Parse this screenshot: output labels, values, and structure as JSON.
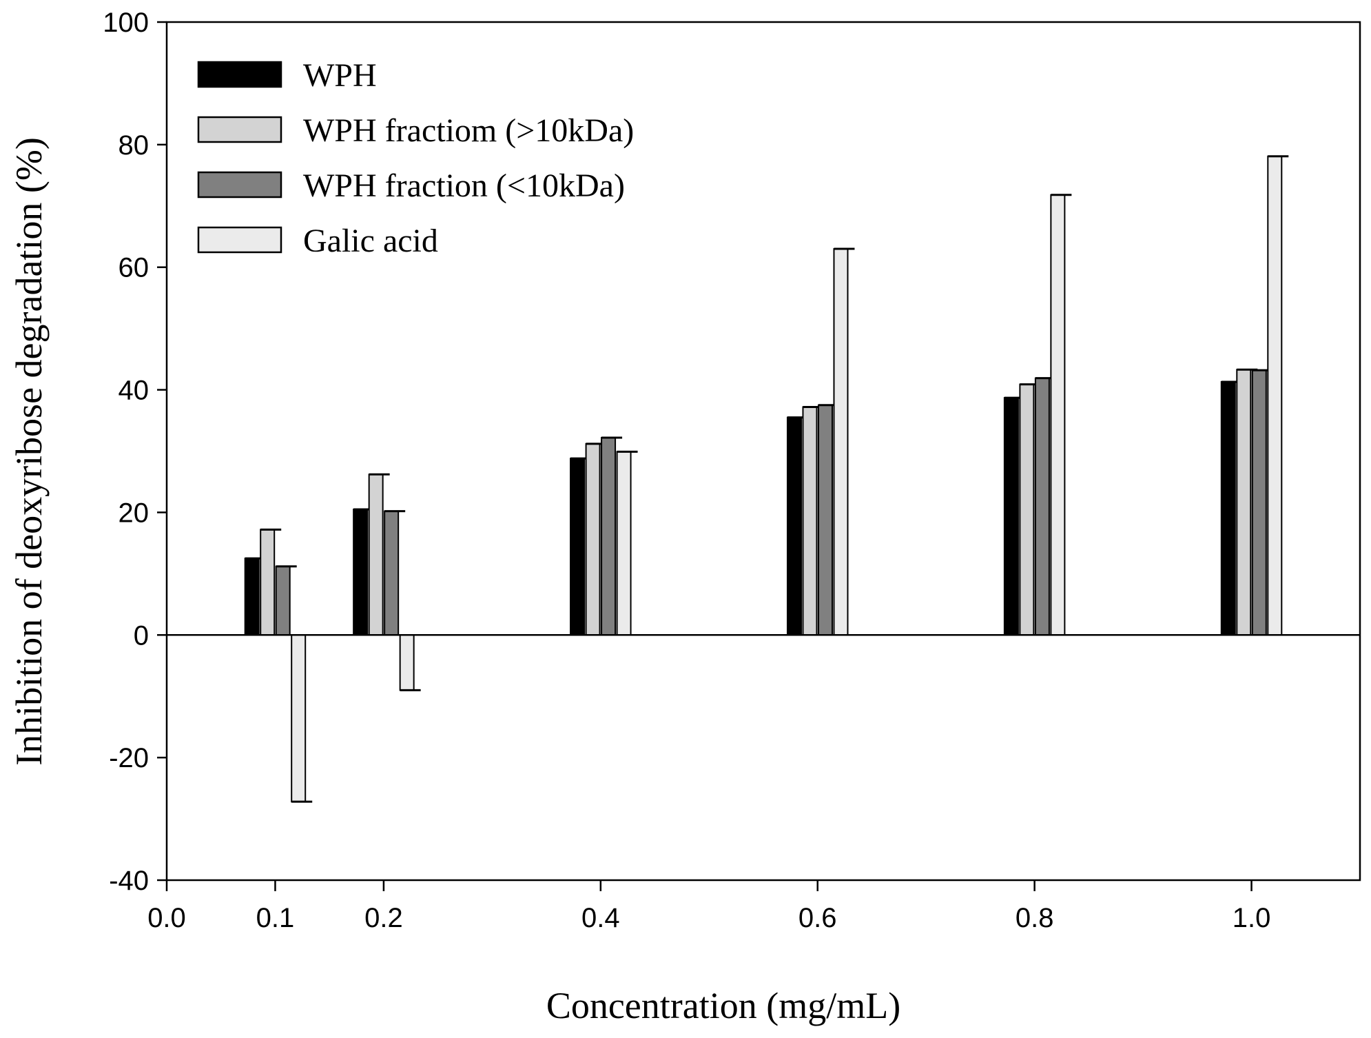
{
  "chart_data": {
    "type": "bar",
    "title": "",
    "xlabel": "Concentration (mg/mL)",
    "ylabel": "Inhibition of deoxyribose degradation (%)",
    "xlim": [
      0.0,
      1.1
    ],
    "ylim": [
      -40,
      100
    ],
    "x_tick_labels": [
      "0.0",
      "0.1",
      "0.2",
      "0.4",
      "0.6",
      "0.8",
      "1.0"
    ],
    "x_tick_values": [
      0.0,
      0.1,
      0.2,
      0.4,
      0.6,
      0.8,
      1.0
    ],
    "y_tick_labels": [
      "-40",
      "-20",
      "0",
      "20",
      "40",
      "60",
      "80",
      "100"
    ],
    "y_tick_values": [
      -40,
      -20,
      0,
      20,
      40,
      60,
      80,
      100
    ],
    "categories": [
      0.1,
      0.2,
      0.4,
      0.6,
      0.8,
      1.0
    ],
    "legend_position": "top-left",
    "series": [
      {
        "name": "WPH",
        "color": "#000000",
        "values": [
          12.5,
          20.5,
          28.8,
          35.5,
          38.7,
          41.3
        ],
        "errors": [
          0,
          0,
          0,
          0,
          0,
          0
        ]
      },
      {
        "name": "WPH fractiom (>10kDa)",
        "color": "#d3d3d3",
        "values": [
          17.2,
          26.2,
          31.2,
          37.2,
          40.9,
          43.3
        ],
        "errors": [
          0,
          0,
          0,
          0,
          0,
          0
        ]
      },
      {
        "name": "WPH fraction (<10kDa)",
        "color": "#808080",
        "values": [
          11.2,
          20.2,
          32.2,
          37.5,
          41.9,
          43.2
        ],
        "errors": [
          0,
          0,
          0,
          0,
          0,
          0
        ]
      },
      {
        "name": "Galic acid",
        "color": "#ebebeb",
        "values": [
          -27.2,
          -9.0,
          29.9,
          63.0,
          71.8,
          78.1
        ],
        "errors": [
          0,
          0,
          0,
          0,
          0,
          0
        ]
      }
    ]
  }
}
